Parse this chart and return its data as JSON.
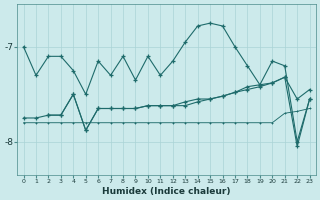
{
  "xlabel": "Humidex (Indice chaleur)",
  "background_color": "#cceaeb",
  "grid_color": "#aad4d6",
  "line_color": "#1e6b6b",
  "xlim": [
    -0.5,
    23.5
  ],
  "ylim": [
    -8.35,
    -6.55
  ],
  "yticks": [
    -8,
    -7
  ],
  "xticks": [
    0,
    1,
    2,
    3,
    4,
    5,
    6,
    7,
    8,
    9,
    10,
    11,
    12,
    13,
    14,
    15,
    16,
    17,
    18,
    19,
    20,
    21,
    22,
    23
  ],
  "s1_x": [
    0,
    1,
    2,
    3,
    4,
    5,
    6,
    7,
    8,
    9,
    10,
    11,
    12,
    13,
    14,
    15,
    16,
    17,
    18,
    19,
    20,
    21,
    22,
    23
  ],
  "s1_y": [
    -7.0,
    -7.3,
    -7.1,
    -7.1,
    -7.25,
    -7.5,
    -7.15,
    -7.3,
    -7.1,
    -7.35,
    -7.1,
    -7.3,
    -7.15,
    -6.95,
    -6.78,
    -6.75,
    -6.78,
    -7.0,
    -7.2,
    -7.4,
    -7.15,
    -7.2,
    -8.0,
    -7.55
  ],
  "s2_x": [
    0,
    1,
    2,
    3,
    4,
    5,
    6,
    7,
    8,
    9,
    10,
    11,
    12,
    13,
    14,
    15,
    16,
    17,
    18,
    19,
    20,
    21,
    22,
    23
  ],
  "s2_y": [
    -7.75,
    -7.75,
    -7.72,
    -7.72,
    -7.5,
    -7.88,
    -7.65,
    -7.65,
    -7.65,
    -7.65,
    -7.62,
    -7.62,
    -7.62,
    -7.58,
    -7.55,
    -7.55,
    -7.52,
    -7.48,
    -7.45,
    -7.42,
    -7.38,
    -7.32,
    -7.55,
    -7.45
  ],
  "s3_x": [
    0,
    1,
    2,
    3,
    4,
    5,
    6,
    7,
    8,
    9,
    10,
    11,
    12,
    13,
    14,
    15,
    16,
    17,
    18,
    19,
    20,
    21,
    22,
    23
  ],
  "s3_y": [
    -7.8,
    -7.8,
    -7.8,
    -7.8,
    -7.8,
    -7.8,
    -7.8,
    -7.8,
    -7.8,
    -7.8,
    -7.8,
    -7.8,
    -7.8,
    -7.8,
    -7.8,
    -7.8,
    -7.8,
    -7.8,
    -7.8,
    -7.8,
    -7.8,
    -7.7,
    -7.68,
    -7.65
  ],
  "s4_x": [
    2,
    3,
    4,
    5,
    6,
    7,
    8,
    9,
    10,
    11,
    12,
    13,
    14,
    15,
    16,
    17,
    18,
    19,
    20,
    21,
    22,
    23
  ],
  "s4_y": [
    -7.72,
    -7.72,
    -7.5,
    -7.88,
    -7.65,
    -7.65,
    -7.65,
    -7.65,
    -7.62,
    -7.62,
    -7.62,
    -7.62,
    -7.58,
    -7.55,
    -7.52,
    -7.48,
    -7.42,
    -7.4,
    -7.38,
    -7.32,
    -8.05,
    -7.55
  ]
}
